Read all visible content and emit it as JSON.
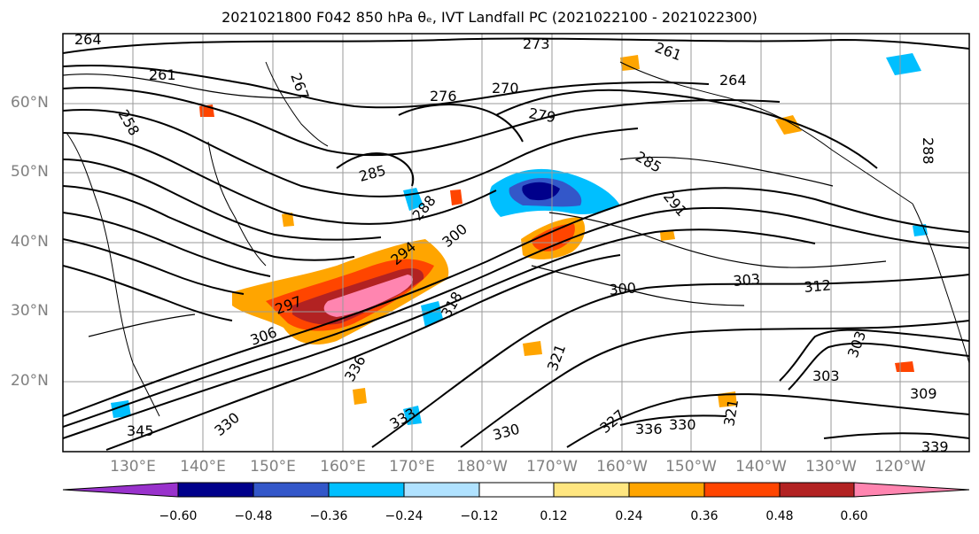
{
  "title": "2021021800 F042 850 hPa θₑ, IVT Landfall PC (2021022100 - 2021022300)",
  "lat_labels": [
    "60°N",
    "50°N",
    "40°N",
    "30°N",
    "20°N"
  ],
  "lon_labels": [
    "130°E",
    "140°E",
    "150°E",
    "160°E",
    "170°E",
    "180°W",
    "170°W",
    "160°W",
    "150°W",
    "140°W",
    "130°W",
    "120°W"
  ],
  "colorbar": {
    "ticks": [
      "−0.60",
      "−0.48",
      "−0.36",
      "−0.24",
      "−0.12",
      "0.12",
      "0.24",
      "0.36",
      "0.48",
      "0.60"
    ],
    "colors": [
      "#9932cc",
      "#00008b",
      "#3357c9",
      "#00bfff",
      "#b0e2ff",
      "#ffffff",
      "#ffe680",
      "#ffa500",
      "#ff4500",
      "#b22222",
      "#ff85b0"
    ]
  },
  "contour_labels": [
    "264",
    "261",
    "258",
    "267",
    "273",
    "276",
    "270",
    "279",
    "261",
    "264",
    "285",
    "288",
    "294",
    "300",
    "306",
    "297",
    "318",
    "336",
    "330",
    "321",
    "327",
    "330",
    "303",
    "303",
    "312",
    "300",
    "303",
    "309",
    "321",
    "345",
    "339",
    "333",
    "291",
    "285",
    "288",
    "330",
    "336"
  ]
}
